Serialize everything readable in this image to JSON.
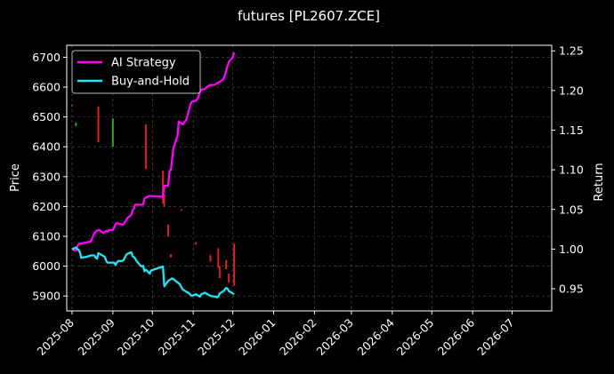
{
  "chart_data": {
    "type": "line",
    "title": "futures [PL2607.ZCE]",
    "ylabel_left": "Price",
    "ylabel_right": "Return",
    "x_ticks": [
      "2025-08",
      "2025-09",
      "2025-10",
      "2025-11",
      "2025-12",
      "2026-01",
      "2026-02",
      "2026-03",
      "2026-04",
      "2026-05",
      "2026-06",
      "2026-07"
    ],
    "xlim": [
      "2025-07-28",
      "2026-07-31"
    ],
    "ylim_left": [
      5850,
      6740
    ],
    "ylim_right": [
      0.922,
      1.257
    ],
    "y_ticks_left": [
      5900,
      6000,
      6100,
      6200,
      6300,
      6400,
      6500,
      6600,
      6700
    ],
    "y_ticks_right": [
      0.95,
      1.0,
      1.05,
      1.1,
      1.15,
      1.2,
      1.25
    ],
    "grid": true,
    "legend_position": "top-left",
    "colors": {
      "background": "#000000",
      "strategy": "#ff00ff",
      "buyhold": "#22e5f5",
      "up_candle": "#2aa52a",
      "down_candle": "#e02020",
      "grid": "#555555"
    },
    "series": [
      {
        "name": "AI Strategy",
        "axis": "right",
        "color": "#ff00ff",
        "x": [
          "2025-08-01",
          "2025-08-04",
          "2025-08-05",
          "2025-08-06",
          "2025-08-07",
          "2025-08-08",
          "2025-08-11",
          "2025-08-12",
          "2025-08-13",
          "2025-08-14",
          "2025-08-15",
          "2025-08-18",
          "2025-08-19",
          "2025-08-20",
          "2025-08-21",
          "2025-08-22",
          "2025-08-25",
          "2025-08-26",
          "2025-08-27",
          "2025-08-28",
          "2025-08-29",
          "2025-09-01",
          "2025-09-02",
          "2025-09-03",
          "2025-09-04",
          "2025-09-05",
          "2025-09-08",
          "2025-09-09",
          "2025-09-10",
          "2025-09-11",
          "2025-09-12",
          "2025-09-15",
          "2025-09-16",
          "2025-09-17",
          "2025-09-18",
          "2025-09-19",
          "2025-09-22",
          "2025-09-23",
          "2025-09-24",
          "2025-09-25",
          "2025-09-26",
          "2025-09-29",
          "2025-09-30",
          "2025-10-09",
          "2025-10-10",
          "2025-10-13",
          "2025-10-14",
          "2025-10-15",
          "2025-10-16",
          "2025-10-17",
          "2025-10-20",
          "2025-10-21",
          "2025-10-22",
          "2025-10-23",
          "2025-10-24",
          "2025-10-27",
          "2025-10-28",
          "2025-10-29",
          "2025-10-30",
          "2025-10-31",
          "2025-11-03",
          "2025-11-04",
          "2025-11-05",
          "2025-11-06",
          "2025-11-07",
          "2025-11-10",
          "2025-11-11",
          "2025-11-12",
          "2025-11-13",
          "2025-11-14",
          "2025-11-17",
          "2025-11-18",
          "2025-11-19",
          "2025-11-20",
          "2025-11-21",
          "2025-11-24",
          "2025-11-25",
          "2025-11-26",
          "2025-11-27",
          "2025-11-28",
          "2025-12-01",
          "2025-12-02"
        ],
        "values": [
          1.0,
          0.998,
          1.003,
          1.006,
          1.007,
          1.007,
          1.008,
          1.008,
          1.009,
          1.009,
          1.009,
          1.02,
          1.022,
          1.023,
          1.024,
          1.024,
          1.02,
          1.022,
          1.023,
          1.022,
          1.024,
          1.024,
          1.027,
          1.031,
          1.033,
          1.032,
          1.031,
          1.031,
          1.034,
          1.036,
          1.039,
          1.043,
          1.049,
          1.051,
          1.056,
          1.056,
          1.056,
          1.056,
          1.056,
          1.064,
          1.065,
          1.067,
          1.067,
          1.066,
          1.08,
          1.08,
          1.098,
          1.1,
          1.114,
          1.128,
          1.142,
          1.161,
          1.16,
          1.159,
          1.157,
          1.164,
          1.171,
          1.177,
          1.183,
          1.186,
          1.187,
          1.189,
          1.192,
          1.198,
          1.201,
          1.202,
          1.204,
          1.205,
          1.206,
          1.207,
          1.207,
          1.208,
          1.209,
          1.21,
          1.211,
          1.214,
          1.219,
          1.225,
          1.231,
          1.236,
          1.242,
          1.248
        ]
      },
      {
        "name": "Buy-and-Hold",
        "axis": "right",
        "color": "#22e5f5",
        "x": [
          "2025-08-01",
          "2025-08-04",
          "2025-08-05",
          "2025-08-06",
          "2025-08-07",
          "2025-08-08",
          "2025-08-11",
          "2025-08-12",
          "2025-08-13",
          "2025-08-14",
          "2025-08-15",
          "2025-08-18",
          "2025-08-19",
          "2025-08-20",
          "2025-08-21",
          "2025-08-22",
          "2025-08-25",
          "2025-08-26",
          "2025-08-27",
          "2025-08-28",
          "2025-08-29",
          "2025-09-01",
          "2025-09-02",
          "2025-09-03",
          "2025-09-04",
          "2025-09-05",
          "2025-09-08",
          "2025-09-09",
          "2025-09-10",
          "2025-09-11",
          "2025-09-12",
          "2025-09-15",
          "2025-09-16",
          "2025-09-17",
          "2025-09-18",
          "2025-09-19",
          "2025-09-22",
          "2025-09-23",
          "2025-09-24",
          "2025-09-25",
          "2025-09-26",
          "2025-09-29",
          "2025-09-30",
          "2025-10-09",
          "2025-10-10",
          "2025-10-13",
          "2025-10-14",
          "2025-10-15",
          "2025-10-16",
          "2025-10-17",
          "2025-10-20",
          "2025-10-21",
          "2025-10-22",
          "2025-10-23",
          "2025-10-24",
          "2025-10-27",
          "2025-10-28",
          "2025-10-29",
          "2025-10-30",
          "2025-10-31",
          "2025-11-03",
          "2025-11-04",
          "2025-11-05",
          "2025-11-06",
          "2025-11-07",
          "2025-11-10",
          "2025-11-11",
          "2025-11-12",
          "2025-11-13",
          "2025-11-14",
          "2025-11-17",
          "2025-11-18",
          "2025-11-19",
          "2025-11-20",
          "2025-11-21",
          "2025-11-24",
          "2025-11-25",
          "2025-11-26",
          "2025-11-27",
          "2025-11-28",
          "2025-12-01",
          "2025-12-02"
        ],
        "values": [
          1.0,
          1.002,
          1.0,
          0.999,
          0.996,
          0.989,
          0.99,
          0.99,
          0.991,
          0.991,
          0.992,
          0.992,
          0.989,
          0.988,
          0.995,
          0.994,
          0.991,
          0.99,
          0.985,
          0.983,
          0.983,
          0.983,
          0.983,
          0.98,
          0.983,
          0.985,
          0.985,
          0.986,
          0.989,
          0.992,
          0.994,
          0.996,
          0.991,
          0.99,
          0.988,
          0.985,
          0.979,
          0.978,
          0.979,
          0.972,
          0.974,
          0.969,
          0.973,
          0.978,
          0.953,
          0.96,
          0.961,
          0.962,
          0.963,
          0.962,
          0.958,
          0.957,
          0.955,
          0.952,
          0.949,
          0.946,
          0.945,
          0.944,
          0.942,
          0.941,
          0.943,
          0.942,
          0.941,
          0.94,
          0.943,
          0.945,
          0.944,
          0.943,
          0.942,
          0.941,
          0.94,
          0.94,
          0.939,
          0.94,
          0.944,
          0.947,
          0.949,
          0.951,
          0.95,
          0.947,
          0.944,
          0.943
        ]
      }
    ],
    "candles": [
      {
        "date": "2025-08-01",
        "open": 6540,
        "close": 6536,
        "high": 6540,
        "low": 6536
      },
      {
        "date": "2025-08-04",
        "open": 6470,
        "close": 6480,
        "high": 6482,
        "low": 6468
      },
      {
        "date": "2025-08-21",
        "open": 6535,
        "close": 6415,
        "high": 6535,
        "low": 6415
      },
      {
        "date": "2025-09-01",
        "open": 6400,
        "close": 6495,
        "high": 6495,
        "low": 6400
      },
      {
        "date": "2025-09-26",
        "open": 6475,
        "close": 6325,
        "high": 6475,
        "low": 6325
      },
      {
        "date": "2025-10-09",
        "open": 6320,
        "close": 6210,
        "high": 6320,
        "low": 6210
      },
      {
        "date": "2025-10-10",
        "open": 6240,
        "close": 6200,
        "high": 6240,
        "low": 6200
      },
      {
        "date": "2025-10-13",
        "open": 6140,
        "close": 6100,
        "high": 6140,
        "low": 6100
      },
      {
        "date": "2025-10-15",
        "open": 6040,
        "close": 6030,
        "high": 6040,
        "low": 6030
      },
      {
        "date": "2025-10-23",
        "open": 6190,
        "close": 6185,
        "high": 6190,
        "low": 6185
      },
      {
        "date": "2025-11-03",
        "open": 6080,
        "close": 6072,
        "high": 6080,
        "low": 6072
      },
      {
        "date": "2025-11-14",
        "open": 6035,
        "close": 6015,
        "high": 6040,
        "low": 6015
      },
      {
        "date": "2025-11-20",
        "open": 6060,
        "close": 5995,
        "high": 6060,
        "low": 5995
      },
      {
        "date": "2025-11-21",
        "open": 6000,
        "close": 5960,
        "high": 6000,
        "low": 5960
      },
      {
        "date": "2025-11-26",
        "open": 6020,
        "close": 5990,
        "high": 6020,
        "low": 5990
      },
      {
        "date": "2025-11-28",
        "open": 5975,
        "close": 5945,
        "high": 5975,
        "low": 5945
      },
      {
        "date": "2025-12-02",
        "open": 6075,
        "close": 5935,
        "high": 6075,
        "low": 5935
      }
    ]
  }
}
